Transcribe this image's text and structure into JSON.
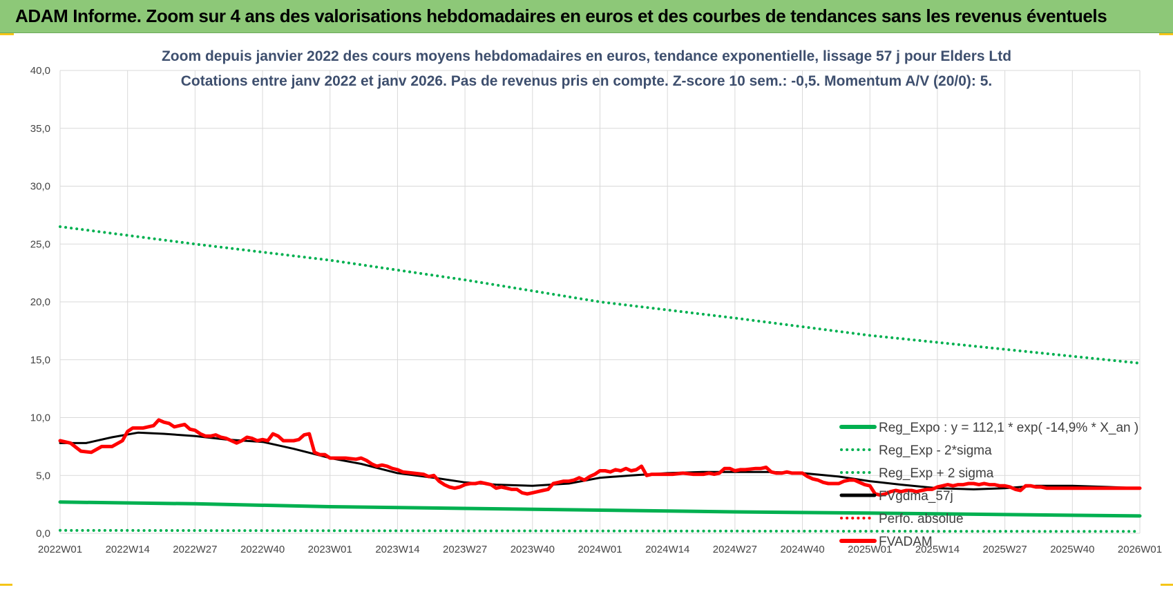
{
  "banner": {
    "title": "ADAM Informe. Zoom sur 4 ans des valorisations hebdomadaires en euros et des courbes de tendances sans les revenus éventuels"
  },
  "colors": {
    "banner_bg": "#8dc878",
    "reg_expo": "#00b050",
    "fvgdma": "#000000",
    "fvadam": "#ff0000",
    "perfo": "#ff0000",
    "grid": "#d9d9d9",
    "title_text": "#3e4f6e"
  },
  "chart_data": {
    "type": "line",
    "title": [
      "Zoom depuis janvier 2022 des cours moyens hebdomadaires en euros, tendance exponentielle, lissage 57 j pour Elders Ltd",
      "Cotations entre janv 2022 et janv 2026. Pas de revenus pris en compte. Z-score 10 sem.: -0,5. Momentum A/V (20/0): 5."
    ],
    "xlabel": "",
    "ylabel": "",
    "xlim": [
      0,
      208
    ],
    "ylim": [
      0,
      40
    ],
    "yticks": [
      "0,0",
      "5,0",
      "10,0",
      "15,0",
      "20,0",
      "25,0",
      "30,0",
      "35,0",
      "40,0"
    ],
    "xticks": [
      {
        "i": 0,
        "label": "2022W01"
      },
      {
        "i": 13,
        "label": "2022W14"
      },
      {
        "i": 26,
        "label": "2022W27"
      },
      {
        "i": 39,
        "label": "2022W40"
      },
      {
        "i": 52,
        "label": "2023W01"
      },
      {
        "i": 65,
        "label": "2023W14"
      },
      {
        "i": 78,
        "label": "2023W27"
      },
      {
        "i": 91,
        "label": "2023W40"
      },
      {
        "i": 104,
        "label": "2024W01"
      },
      {
        "i": 117,
        "label": "2024W14"
      },
      {
        "i": 130,
        "label": "2024W27"
      },
      {
        "i": 143,
        "label": "2024W40"
      },
      {
        "i": 156,
        "label": "2025W01"
      },
      {
        "i": 169,
        "label": "2025W14"
      },
      {
        "i": 182,
        "label": "2025W27"
      },
      {
        "i": 195,
        "label": "2025W40"
      },
      {
        "i": 208,
        "label": "2026W01"
      }
    ],
    "grid": true,
    "legend_position": "bottom-right",
    "series": [
      {
        "name": "Reg_Expo : y = 112,1 * exp( -14,9% * X_an )",
        "style": "solid",
        "color": "#00b050",
        "points": [
          [
            0,
            2.7
          ],
          [
            26,
            2.55
          ],
          [
            52,
            2.3
          ],
          [
            78,
            2.15
          ],
          [
            104,
            2.0
          ],
          [
            130,
            1.85
          ],
          [
            156,
            1.75
          ],
          [
            182,
            1.62
          ],
          [
            208,
            1.5
          ]
        ]
      },
      {
        "name": "Reg_Exp - 2*sigma",
        "style": "dotted",
        "color": "#00b050",
        "points": [
          [
            0,
            0.25
          ],
          [
            52,
            0.22
          ],
          [
            104,
            0.2
          ],
          [
            156,
            0.18
          ],
          [
            208,
            0.16
          ]
        ]
      },
      {
        "name": "Reg_Exp + 2 sigma",
        "style": "dotted",
        "color": "#00b050",
        "points": [
          [
            0,
            26.5
          ],
          [
            26,
            25.0
          ],
          [
            52,
            23.6
          ],
          [
            78,
            21.9
          ],
          [
            104,
            20.0
          ],
          [
            130,
            18.6
          ],
          [
            156,
            17.1
          ],
          [
            182,
            15.9
          ],
          [
            208,
            14.7
          ]
        ]
      },
      {
        "name": "FVgdma_57j",
        "style": "solid",
        "color": "#000000",
        "points": [
          [
            0,
            7.8
          ],
          [
            5,
            7.8
          ],
          [
            10,
            8.3
          ],
          [
            15,
            8.7
          ],
          [
            20,
            8.6
          ],
          [
            26,
            8.4
          ],
          [
            32,
            8.1
          ],
          [
            39,
            7.9
          ],
          [
            45,
            7.3
          ],
          [
            52,
            6.5
          ],
          [
            58,
            6.0
          ],
          [
            65,
            5.2
          ],
          [
            72,
            4.8
          ],
          [
            78,
            4.4
          ],
          [
            84,
            4.2
          ],
          [
            91,
            4.1
          ],
          [
            98,
            4.3
          ],
          [
            104,
            4.8
          ],
          [
            110,
            5.0
          ],
          [
            117,
            5.2
          ],
          [
            124,
            5.3
          ],
          [
            130,
            5.3
          ],
          [
            137,
            5.3
          ],
          [
            143,
            5.2
          ],
          [
            150,
            4.9
          ],
          [
            156,
            4.5
          ],
          [
            162,
            4.2
          ],
          [
            169,
            3.9
          ],
          [
            176,
            3.8
          ],
          [
            182,
            3.9
          ],
          [
            188,
            4.1
          ],
          [
            195,
            4.1
          ],
          [
            202,
            4.0
          ],
          [
            208,
            3.9
          ]
        ]
      },
      {
        "name": "Perfo. absolue",
        "style": "dotted",
        "color": "#ff0000",
        "points": []
      },
      {
        "name": "FVADAM",
        "style": "solid",
        "color": "#ff0000",
        "points": [
          [
            0,
            8.0
          ],
          [
            2,
            7.8
          ],
          [
            4,
            7.1
          ],
          [
            6,
            7.0
          ],
          [
            8,
            7.5
          ],
          [
            10,
            7.5
          ],
          [
            12,
            8.0
          ],
          [
            13,
            8.8
          ],
          [
            14,
            9.1
          ],
          [
            16,
            9.1
          ],
          [
            18,
            9.3
          ],
          [
            19,
            9.8
          ],
          [
            20,
            9.6
          ],
          [
            21,
            9.5
          ],
          [
            22,
            9.2
          ],
          [
            23,
            9.3
          ],
          [
            24,
            9.4
          ],
          [
            25,
            9.0
          ],
          [
            26,
            8.9
          ],
          [
            27,
            8.6
          ],
          [
            28,
            8.4
          ],
          [
            29,
            8.4
          ],
          [
            30,
            8.5
          ],
          [
            31,
            8.3
          ],
          [
            32,
            8.2
          ],
          [
            33,
            8.0
          ],
          [
            34,
            7.8
          ],
          [
            35,
            8.0
          ],
          [
            36,
            8.3
          ],
          [
            37,
            8.2
          ],
          [
            38,
            8.0
          ],
          [
            39,
            8.1
          ],
          [
            40,
            8.0
          ],
          [
            41,
            8.6
          ],
          [
            42,
            8.4
          ],
          [
            43,
            8.0
          ],
          [
            44,
            8.0
          ],
          [
            45,
            8.0
          ],
          [
            46,
            8.1
          ],
          [
            47,
            8.5
          ],
          [
            48,
            8.6
          ],
          [
            49,
            7.0
          ],
          [
            50,
            6.8
          ],
          [
            51,
            6.8
          ],
          [
            52,
            6.5
          ],
          [
            53,
            6.5
          ],
          [
            55,
            6.5
          ],
          [
            57,
            6.4
          ],
          [
            58,
            6.5
          ],
          [
            59,
            6.3
          ],
          [
            60,
            6.0
          ],
          [
            61,
            5.8
          ],
          [
            62,
            5.9
          ],
          [
            63,
            5.8
          ],
          [
            64,
            5.6
          ],
          [
            65,
            5.5
          ],
          [
            66,
            5.3
          ],
          [
            68,
            5.2
          ],
          [
            70,
            5.1
          ],
          [
            71,
            4.9
          ],
          [
            72,
            5.0
          ],
          [
            73,
            4.5
          ],
          [
            74,
            4.2
          ],
          [
            75,
            4.0
          ],
          [
            76,
            3.9
          ],
          [
            77,
            4.0
          ],
          [
            78,
            4.2
          ],
          [
            79,
            4.3
          ],
          [
            80,
            4.3
          ],
          [
            81,
            4.4
          ],
          [
            82,
            4.3
          ],
          [
            83,
            4.2
          ],
          [
            84,
            3.9
          ],
          [
            85,
            4.0
          ],
          [
            86,
            3.9
          ],
          [
            87,
            3.8
          ],
          [
            88,
            3.8
          ],
          [
            89,
            3.5
          ],
          [
            90,
            3.4
          ],
          [
            91,
            3.5
          ],
          [
            92,
            3.6
          ],
          [
            93,
            3.7
          ],
          [
            94,
            3.8
          ],
          [
            95,
            4.3
          ],
          [
            96,
            4.4
          ],
          [
            97,
            4.5
          ],
          [
            98,
            4.5
          ],
          [
            99,
            4.6
          ],
          [
            100,
            4.8
          ],
          [
            101,
            4.6
          ],
          [
            102,
            4.9
          ],
          [
            103,
            5.1
          ],
          [
            104,
            5.4
          ],
          [
            105,
            5.4
          ],
          [
            106,
            5.3
          ],
          [
            107,
            5.5
          ],
          [
            108,
            5.4
          ],
          [
            109,
            5.6
          ],
          [
            110,
            5.4
          ],
          [
            111,
            5.5
          ],
          [
            112,
            5.8
          ],
          [
            113,
            5.0
          ],
          [
            114,
            5.1
          ],
          [
            116,
            5.1
          ],
          [
            118,
            5.1
          ],
          [
            120,
            5.2
          ],
          [
            122,
            5.1
          ],
          [
            124,
            5.1
          ],
          [
            125,
            5.2
          ],
          [
            126,
            5.1
          ],
          [
            127,
            5.2
          ],
          [
            128,
            5.6
          ],
          [
            129,
            5.6
          ],
          [
            130,
            5.4
          ],
          [
            131,
            5.5
          ],
          [
            132,
            5.5
          ],
          [
            134,
            5.6
          ],
          [
            135,
            5.6
          ],
          [
            136,
            5.7
          ],
          [
            137,
            5.3
          ],
          [
            138,
            5.2
          ],
          [
            139,
            5.2
          ],
          [
            140,
            5.3
          ],
          [
            141,
            5.2
          ],
          [
            142,
            5.2
          ],
          [
            143,
            5.2
          ],
          [
            144,
            4.9
          ],
          [
            145,
            4.7
          ],
          [
            146,
            4.6
          ],
          [
            147,
            4.4
          ],
          [
            148,
            4.3
          ],
          [
            150,
            4.3
          ],
          [
            151,
            4.5
          ],
          [
            152,
            4.6
          ],
          [
            153,
            4.6
          ],
          [
            154,
            4.4
          ],
          [
            155,
            4.2
          ],
          [
            156,
            4.1
          ],
          [
            157,
            3.4
          ],
          [
            158,
            3.3
          ],
          [
            159,
            3.4
          ],
          [
            160,
            3.6
          ],
          [
            161,
            3.7
          ],
          [
            162,
            3.6
          ],
          [
            163,
            3.7
          ],
          [
            164,
            3.7
          ],
          [
            165,
            3.6
          ],
          [
            166,
            3.7
          ],
          [
            167,
            3.8
          ],
          [
            168,
            3.8
          ],
          [
            169,
            4.0
          ],
          [
            170,
            4.1
          ],
          [
            171,
            4.2
          ],
          [
            172,
            4.1
          ],
          [
            173,
            4.2
          ],
          [
            174,
            4.2
          ],
          [
            175,
            4.3
          ],
          [
            176,
            4.3
          ],
          [
            177,
            4.2
          ],
          [
            178,
            4.3
          ],
          [
            179,
            4.2
          ],
          [
            180,
            4.2
          ],
          [
            181,
            4.1
          ],
          [
            182,
            4.1
          ],
          [
            183,
            4.0
          ],
          [
            184,
            3.8
          ],
          [
            185,
            3.7
          ],
          [
            186,
            4.1
          ],
          [
            187,
            4.1
          ],
          [
            188,
            4.0
          ],
          [
            189,
            4.0
          ],
          [
            190,
            3.9
          ],
          [
            192,
            3.9
          ],
          [
            194,
            3.9
          ],
          [
            196,
            3.9
          ],
          [
            198,
            3.9
          ],
          [
            200,
            3.9
          ],
          [
            202,
            3.9
          ],
          [
            204,
            3.9
          ],
          [
            206,
            3.9
          ],
          [
            208,
            3.9
          ]
        ]
      }
    ]
  }
}
